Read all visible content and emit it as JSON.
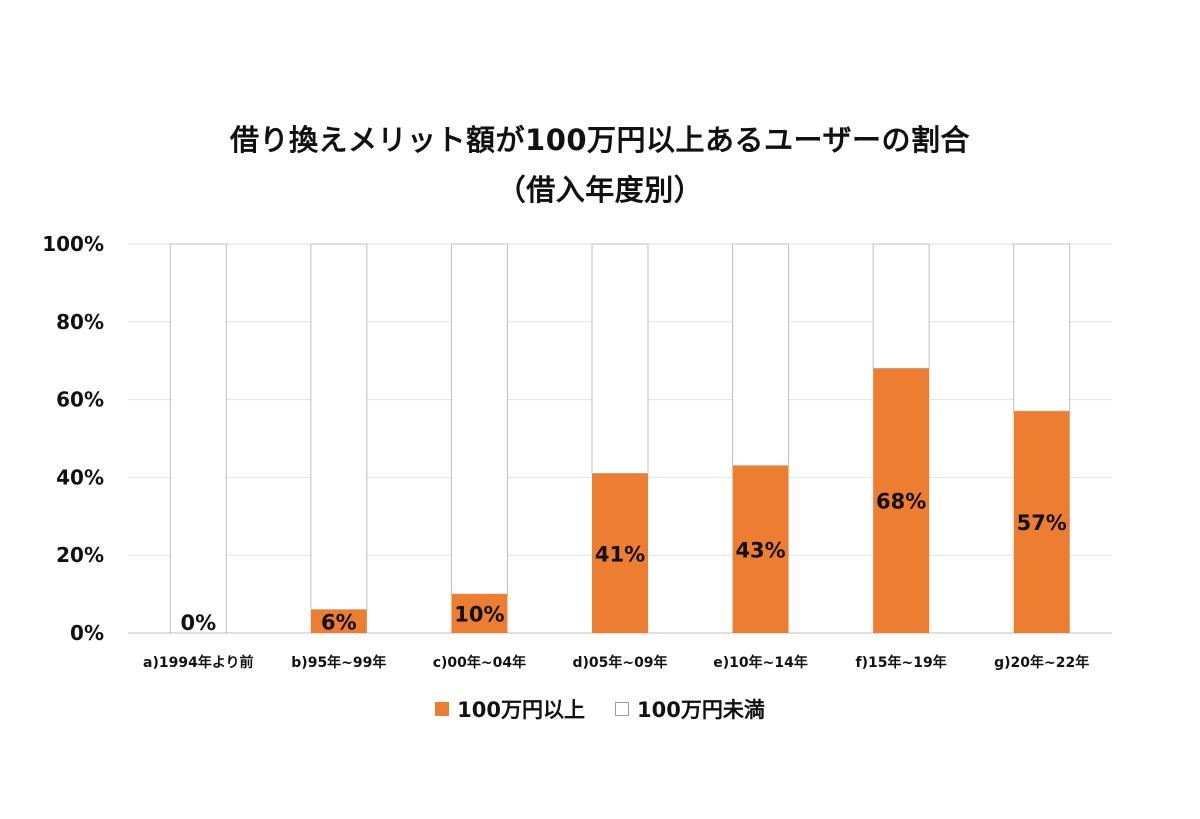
{
  "chart_data": {
    "type": "bar",
    "stacked": true,
    "title": "借り換えメリット額が100万円以上あるユーザーの割合",
    "subtitle": "（借入年度別）",
    "categories": [
      "a)1994年より前",
      "b)95年~99年",
      "c)00年~04年",
      "d)05年~09年",
      "e)10年~14年",
      "f)15年~19年",
      "g)20年~22年"
    ],
    "series": [
      {
        "name": "100万円以上",
        "color": "#ED7D31",
        "values": [
          0,
          6,
          10,
          41,
          43,
          68,
          57
        ]
      },
      {
        "name": "100万円未満",
        "color": "#FFFFFF",
        "values": [
          100,
          94,
          90,
          59,
          57,
          32,
          43
        ]
      }
    ],
    "data_labels": [
      "0%",
      "6%",
      "10%",
      "41%",
      "43%",
      "68%",
      "57%"
    ],
    "ylim": [
      0,
      100
    ],
    "yticks": [
      0,
      20,
      40,
      60,
      80,
      100
    ],
    "ytick_labels": [
      "0%",
      "20%",
      "40%",
      "60%",
      "80%",
      "100%"
    ],
    "grid": true,
    "legend_position": "bottom",
    "xlabel": "",
    "ylabel": ""
  }
}
